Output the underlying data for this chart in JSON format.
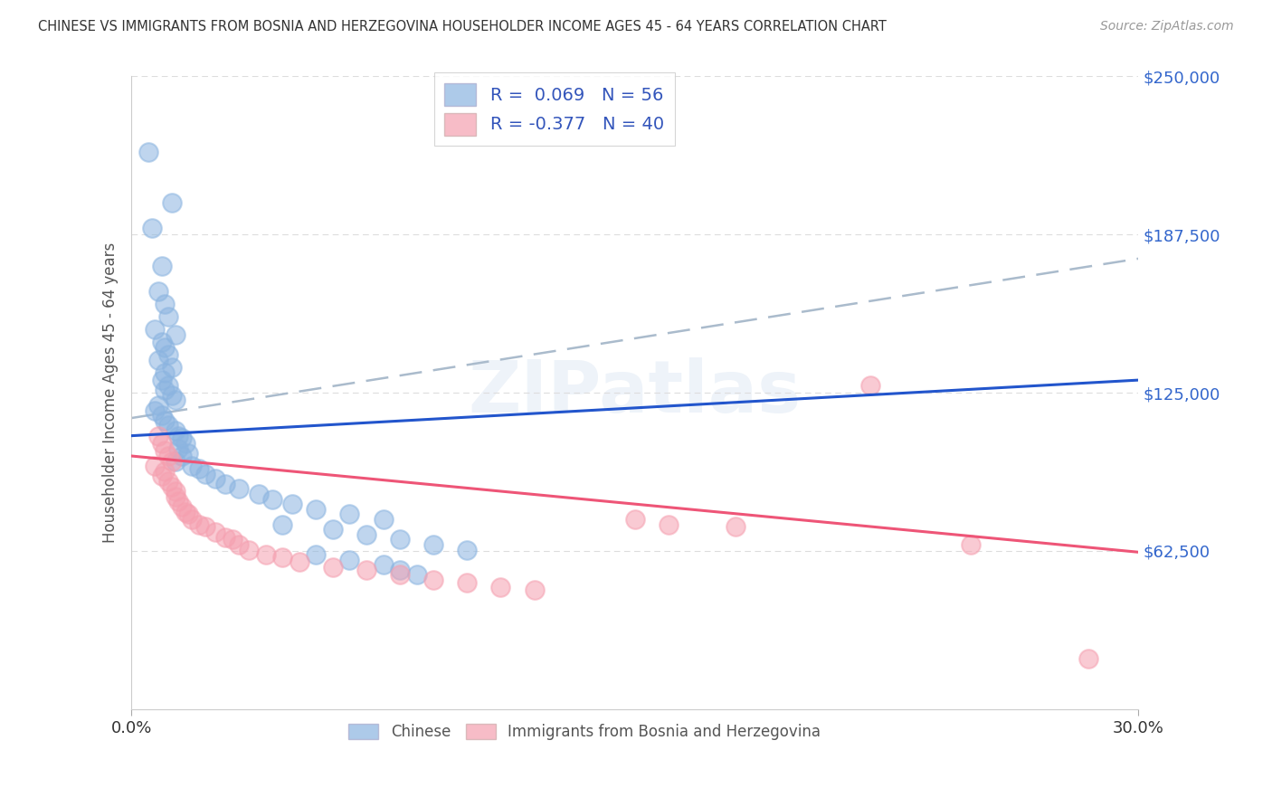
{
  "title": "CHINESE VS IMMIGRANTS FROM BOSNIA AND HERZEGOVINA HOUSEHOLDER INCOME AGES 45 - 64 YEARS CORRELATION CHART",
  "source": "Source: ZipAtlas.com",
  "ylabel": "Householder Income Ages 45 - 64 years",
  "xlim": [
    0.0,
    0.3
  ],
  "ylim": [
    0,
    250000
  ],
  "ytick_labels": [
    "",
    "$62,500",
    "$125,000",
    "$187,500",
    "$250,000"
  ],
  "ytick_values": [
    0,
    62500,
    125000,
    187500,
    250000
  ],
  "xtick_labels": [
    "0.0%",
    "30.0%"
  ],
  "xtick_values": [
    0.0,
    0.3
  ],
  "watermark_text": "ZIPatlas",
  "chinese_R": 0.069,
  "chinese_N": 56,
  "bosnia_R": -0.377,
  "bosnia_N": 40,
  "blue_scatter_color": "#8BB4E0",
  "pink_scatter_color": "#F5A0B0",
  "blue_line_color": "#2255CC",
  "pink_line_color": "#EE5577",
  "gray_dash_color": "#AABBCC",
  "grid_color": "#DDDDDD",
  "background_color": "#FFFFFF",
  "title_color": "#333333",
  "source_color": "#999999",
  "ytick_color": "#3366CC",
  "xtick_color": "#333333",
  "ylabel_color": "#555555",
  "legend_edge_color": "#CCCCCC",
  "legend_text_color": "#3355BB",
  "bottom_legend_text_color": "#555555",
  "chinese_x": [
    0.005,
    0.012,
    0.006,
    0.009,
    0.008,
    0.01,
    0.011,
    0.007,
    0.013,
    0.009,
    0.01,
    0.011,
    0.008,
    0.012,
    0.01,
    0.009,
    0.011,
    0.01,
    0.012,
    0.013,
    0.008,
    0.007,
    0.009,
    0.01,
    0.011,
    0.013,
    0.014,
    0.015,
    0.016,
    0.014,
    0.017,
    0.015,
    0.013,
    0.018,
    0.02,
    0.022,
    0.025,
    0.028,
    0.032,
    0.038,
    0.042,
    0.048,
    0.055,
    0.065,
    0.075,
    0.045,
    0.06,
    0.07,
    0.08,
    0.09,
    0.1,
    0.055,
    0.065,
    0.075,
    0.08,
    0.085
  ],
  "chinese_y": [
    220000,
    200000,
    190000,
    175000,
    165000,
    160000,
    155000,
    150000,
    148000,
    145000,
    143000,
    140000,
    138000,
    135000,
    133000,
    130000,
    128000,
    126000,
    124000,
    122000,
    120000,
    118000,
    116000,
    114000,
    112000,
    110000,
    108000,
    107000,
    105000,
    103000,
    101000,
    100000,
    98000,
    96000,
    95000,
    93000,
    91000,
    89000,
    87000,
    85000,
    83000,
    81000,
    79000,
    77000,
    75000,
    73000,
    71000,
    69000,
    67000,
    65000,
    63000,
    61000,
    59000,
    57000,
    55000,
    53000
  ],
  "bosnia_x": [
    0.008,
    0.009,
    0.01,
    0.011,
    0.012,
    0.007,
    0.01,
    0.009,
    0.011,
    0.012,
    0.013,
    0.013,
    0.014,
    0.015,
    0.016,
    0.017,
    0.018,
    0.02,
    0.022,
    0.025,
    0.028,
    0.03,
    0.032,
    0.035,
    0.04,
    0.045,
    0.05,
    0.06,
    0.07,
    0.08,
    0.09,
    0.1,
    0.11,
    0.12,
    0.15,
    0.16,
    0.18,
    0.22,
    0.25,
    0.285
  ],
  "bosnia_y": [
    108000,
    105000,
    102000,
    100000,
    98000,
    96000,
    94000,
    92000,
    90000,
    88000,
    86000,
    84000,
    82000,
    80000,
    78000,
    77000,
    75000,
    73000,
    72000,
    70000,
    68000,
    67000,
    65000,
    63000,
    61000,
    60000,
    58000,
    56000,
    55000,
    53000,
    51000,
    50000,
    48000,
    47000,
    75000,
    73000,
    72000,
    128000,
    65000,
    20000
  ],
  "blue_line_x": [
    0.0,
    0.3
  ],
  "blue_line_y": [
    108000,
    130000
  ],
  "pink_line_x": [
    0.0,
    0.3
  ],
  "pink_line_y": [
    100000,
    62000
  ],
  "gray_line_x": [
    0.0,
    0.3
  ],
  "gray_line_y": [
    115000,
    178000
  ]
}
